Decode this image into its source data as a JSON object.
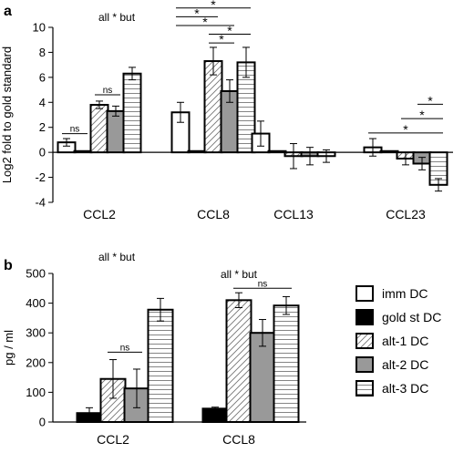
{
  "chart_data": [
    {
      "panel": "a",
      "type": "bar",
      "ylabel": "Log2 fold to gold standard",
      "ylim": [
        -4,
        10
      ],
      "yticks": [
        -4,
        -2,
        0,
        2,
        4,
        6,
        8,
        10
      ],
      "note": "all * but",
      "categories": [
        "CCL2",
        "CCL8",
        "CCL13",
        "CCL23"
      ],
      "series": [
        {
          "name": "imm DC",
          "values": [
            0.8,
            3.2,
            1.5,
            0.4
          ],
          "errors": [
            0.3,
            0.8,
            1.0,
            0.7
          ]
        },
        {
          "name": "gold st DC",
          "values": [
            0.1,
            0.1,
            0.1,
            0.1
          ],
          "errors": [
            0,
            0,
            0,
            0
          ]
        },
        {
          "name": "alt-1 DC",
          "values": [
            3.8,
            7.3,
            -0.3,
            -0.5
          ],
          "errors": [
            0.3,
            1.1,
            1.0,
            0.5
          ]
        },
        {
          "name": "alt-2 DC",
          "values": [
            3.3,
            4.9,
            -0.3,
            -0.9
          ],
          "errors": [
            0.4,
            0.9,
            0.7,
            0.5
          ]
        },
        {
          "name": "alt-3 DC",
          "values": [
            6.3,
            7.2,
            -0.3,
            -2.6
          ],
          "errors": [
            0.5,
            1.2,
            0.5,
            0.5
          ]
        }
      ],
      "annotations": [
        {
          "category": 0,
          "from": 0,
          "to": 1,
          "label": "ns",
          "y": 1.5
        },
        {
          "category": 0,
          "from": 2,
          "to": 3,
          "label": "ns",
          "y": 4.6
        },
        {
          "category": 1,
          "from": 2,
          "to": 3,
          "label": "*",
          "y": 8.75
        },
        {
          "category": 1,
          "from": 2,
          "to": 4,
          "label": "*",
          "y": 9.45
        },
        {
          "category": 1,
          "from": 0,
          "to": 3,
          "label": "*",
          "y": 10.15
        },
        {
          "category": 1,
          "from": 0,
          "to": 2,
          "label": "*",
          "y": 10.85
        },
        {
          "category": 1,
          "from": 0,
          "to": 4,
          "label": "*",
          "y": 11.55
        },
        {
          "category": 3,
          "from": 0,
          "to": 4,
          "label": "*",
          "y": 1.55
        },
        {
          "category": 3,
          "from": 2,
          "to": 4,
          "label": "*",
          "y": 2.7
        },
        {
          "category": 3,
          "from": 3,
          "to": 4,
          "label": "*",
          "y": 3.85
        }
      ]
    },
    {
      "panel": "b",
      "type": "bar",
      "ylabel": "pg / ml",
      "ylim": [
        0,
        500
      ],
      "yticks": [
        0,
        100,
        200,
        300,
        400,
        500
      ],
      "note": "all * but",
      "categories": [
        "CCL2",
        "CCL8"
      ],
      "series": [
        {
          "name": "imm DC",
          "values": [
            0,
            0
          ],
          "errors": [
            0,
            0
          ]
        },
        {
          "name": "gold st DC",
          "values": [
            30,
            45
          ],
          "errors": [
            18,
            5
          ]
        },
        {
          "name": "alt-1 DC",
          "values": [
            145,
            410
          ],
          "errors": [
            65,
            25
          ]
        },
        {
          "name": "alt-2 DC",
          "values": [
            113,
            300
          ],
          "errors": [
            65,
            45
          ]
        },
        {
          "name": "alt-3 DC",
          "values": [
            378,
            392
          ],
          "errors": [
            38,
            30
          ]
        }
      ],
      "annotations": [
        {
          "category": 0,
          "from": 2,
          "to": 3,
          "label": "ns",
          "y": 235
        },
        {
          "category": 1,
          "from": 2,
          "to": 4,
          "label": "ns",
          "y": 450
        }
      ],
      "category_notes": [
        {
          "category": 1,
          "text": "all * but",
          "y": 500
        }
      ],
      "legend_position": "right"
    }
  ],
  "legend": [
    "imm DC",
    "gold st DC",
    "alt-1 DC",
    "alt-2 DC",
    "alt-3 DC"
  ],
  "colors": {
    "alt-2 DC": "#999999",
    "gold st DC": "#000000",
    "imm DC": "#ffffff"
  }
}
